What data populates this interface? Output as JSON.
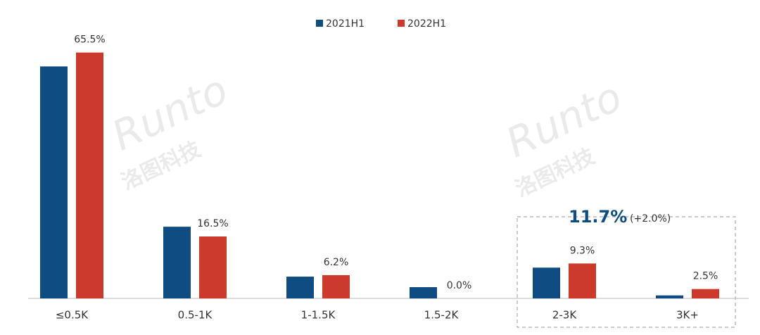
{
  "chart_data": {
    "type": "bar",
    "categories": [
      "≤0.5K",
      "0.5-1K",
      "1-1.5K",
      "1.5-2K",
      "2-3K",
      "3K+"
    ],
    "series": [
      {
        "name": "2021H1",
        "color": "#0f4c81",
        "values": [
          61.8,
          19.1,
          5.8,
          3.0,
          8.2,
          0.8
        ]
      },
      {
        "name": "2022H1",
        "color": "#cc3a2b",
        "values": [
          65.5,
          16.5,
          6.2,
          0.0,
          9.3,
          2.5
        ],
        "value_labels": [
          "65.5%",
          "16.5%",
          "6.2%",
          "0.0%",
          "9.3%",
          "2.5%"
        ]
      }
    ],
    "ylim": [
      0,
      72
    ],
    "annotation": {
      "text": "11.7%",
      "change": "(+2.0%)"
    },
    "watermark": "Runto",
    "watermark_sub": "洛图科技"
  }
}
